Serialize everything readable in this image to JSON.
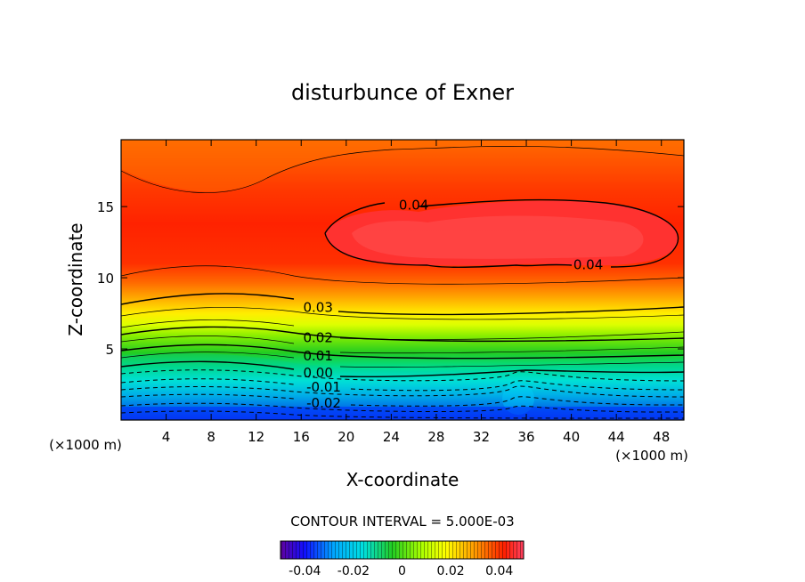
{
  "chart_data": {
    "type": "contour",
    "title": "disturbunce of Exner",
    "xlabel": "X-coordinate",
    "ylabel": "Z-coordinate",
    "x_unit": "(×1000 m)",
    "x_unit_right": "(×1000 m)",
    "xlim": [
      0,
      50
    ],
    "ylim": [
      0,
      19.7
    ],
    "xticks": [
      "4",
      "8",
      "12",
      "16",
      "20",
      "24",
      "28",
      "32",
      "36",
      "40",
      "44",
      "48"
    ],
    "xtick_values": [
      4,
      8,
      12,
      16,
      20,
      24,
      28,
      32,
      36,
      40,
      44,
      48
    ],
    "yticks": [
      "5",
      "10",
      "15"
    ],
    "ytick_values": [
      5,
      10,
      15
    ],
    "contour_interval_text": "CONTOUR INTERVAL = 5.000E-03",
    "contour_interval": 0.005,
    "colorbar_range": [
      -0.05,
      0.05
    ],
    "colorbar_ticks": [
      "-0.04",
      "-0.02",
      "0",
      "0.02",
      "0.04"
    ],
    "colorbar_tick_values": [
      -0.04,
      -0.02,
      0,
      0.02,
      0.04
    ],
    "contour_labels": [
      {
        "text": "0.04",
        "x": 26.0,
        "z": 15.1
      },
      {
        "text": "0.04",
        "x": 41.5,
        "z": 10.9
      },
      {
        "text": "0.03",
        "x": 17.5,
        "z": 7.9
      },
      {
        "text": "0.02",
        "x": 17.5,
        "z": 5.8
      },
      {
        "text": "0.01",
        "x": 17.5,
        "z": 4.5
      },
      {
        "text": "0.00",
        "x": 17.5,
        "z": 3.3
      },
      {
        "text": "-0.01",
        "x": 18.0,
        "z": 2.3
      },
      {
        "text": "-0.02",
        "x": 18.0,
        "z": 1.2
      }
    ],
    "colors": {
      "max": "#ff3030",
      "high": "#ff1a00",
      "mid": "#ffff00",
      "zero": "#33cc33",
      "low": "#00e0ff",
      "min": "#0000ff"
    }
  }
}
